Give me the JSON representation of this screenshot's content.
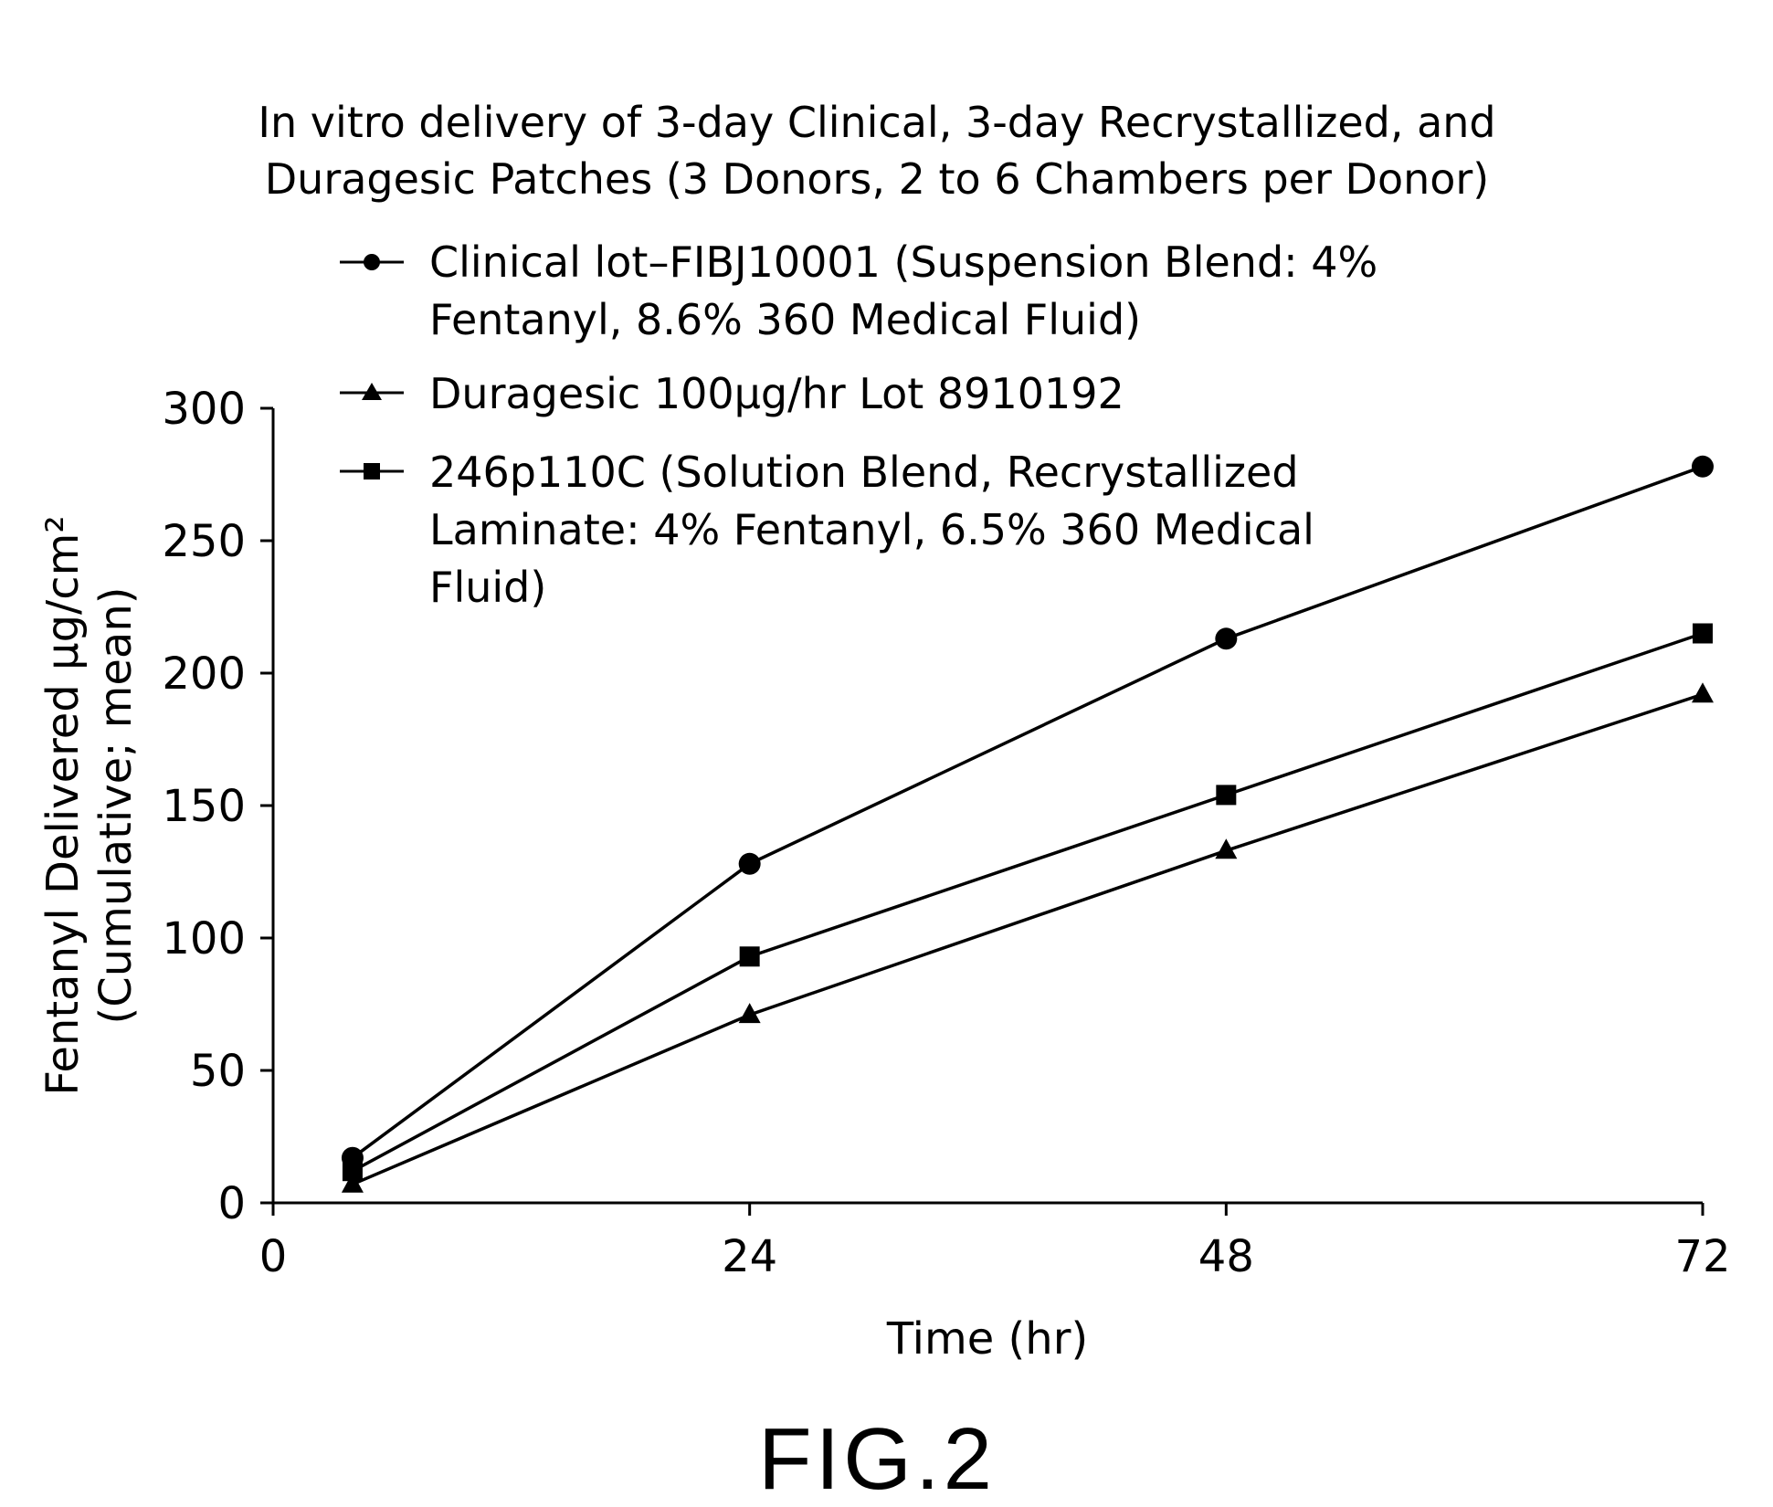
{
  "chart_data": {
    "type": "line",
    "title_lines": [
      "In vitro delivery of 3-day Clinical, 3-day Recrystallized, and",
      "Duragesic Patches (3 Donors, 2 to 6 Chambers per Donor)"
    ],
    "xlabel": "Time (hr)",
    "ylabel_lines": [
      "Fentanyl Delivered μg/cm²",
      "(Cumulative; mean)"
    ],
    "xlim": [
      0,
      72
    ],
    "ylim": [
      0,
      300
    ],
    "x_ticks": [
      0,
      24,
      48,
      72
    ],
    "y_ticks": [
      0,
      50,
      100,
      150,
      200,
      250,
      300
    ],
    "grid": false,
    "legend_position": "top-left inside plot",
    "series": [
      {
        "name_lines": [
          "Clinical lot–FIBJ10001 (Suspension Blend: 4%",
          "Fentanyl, 8.6% 360 Medical Fluid)"
        ],
        "marker": "circle",
        "x": [
          4,
          24,
          48,
          72
        ],
        "y": [
          17,
          128,
          213,
          278
        ]
      },
      {
        "name_lines": [
          "Duragesic 100μg/hr Lot 8910192"
        ],
        "marker": "triangle",
        "x": [
          4,
          24,
          48,
          72
        ],
        "y": [
          7,
          71,
          133,
          192
        ]
      },
      {
        "name_lines": [
          "246p110C (Solution Blend, Recrystallized",
          "Laminate: 4% Fentanyl, 6.5% 360 Medical",
          "Fluid)"
        ],
        "marker": "square",
        "x": [
          4,
          24,
          48,
          72
        ],
        "y": [
          12,
          93,
          154,
          215
        ]
      }
    ]
  },
  "figure_label": "FIG.2"
}
